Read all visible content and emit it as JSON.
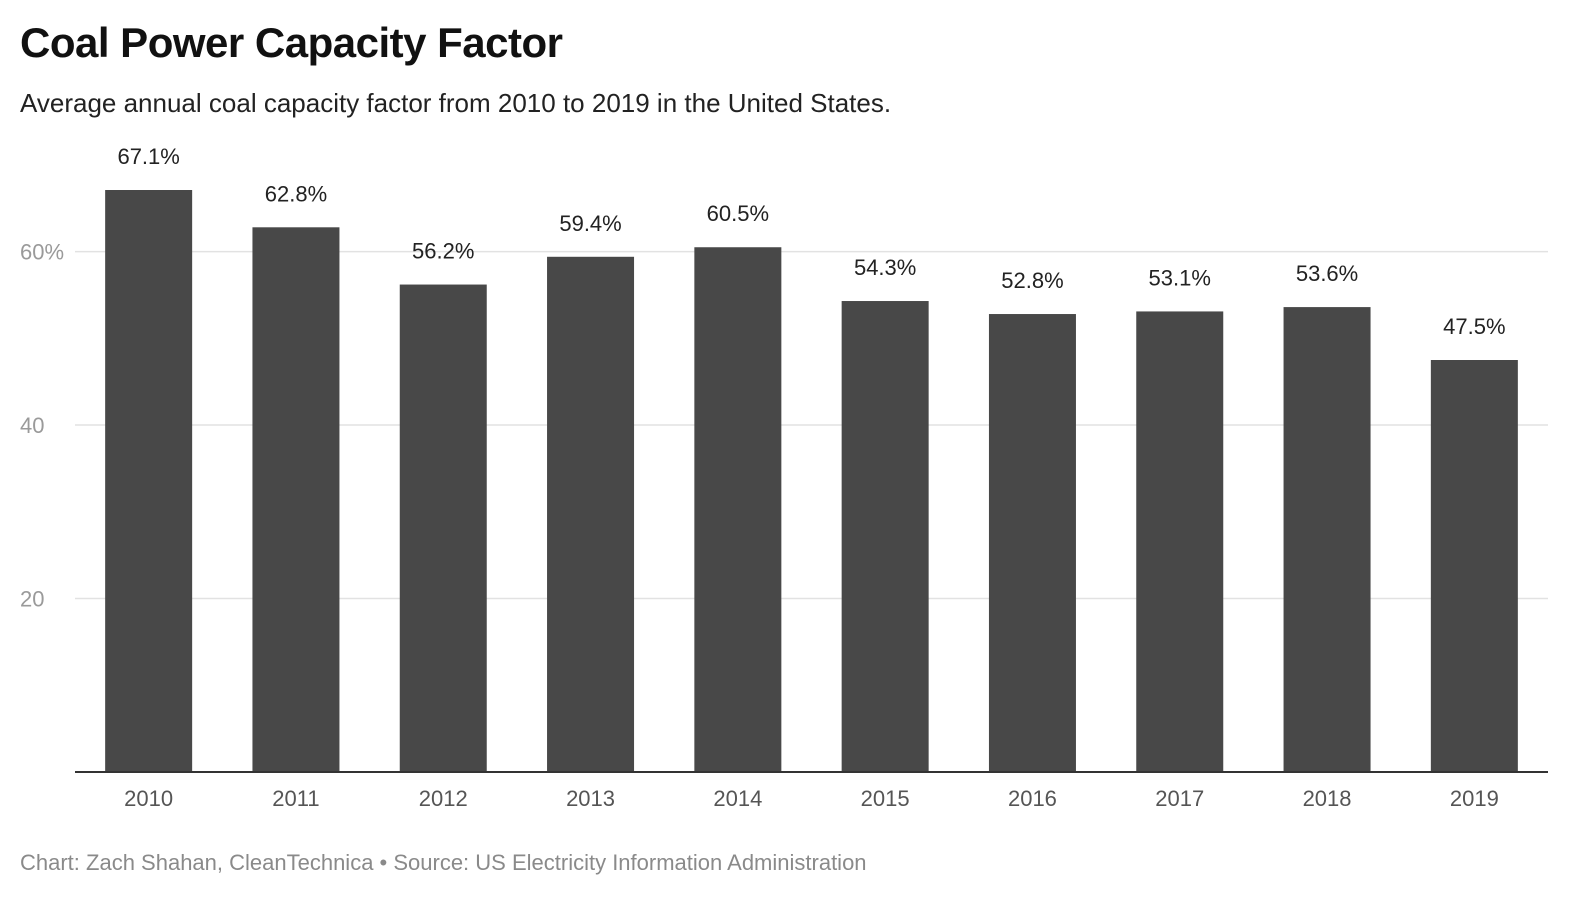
{
  "chart_data": {
    "type": "bar",
    "title": "Coal Power Capacity Factor",
    "subtitle": "Average annual coal capacity factor from 2010 to 2019 in the United States.",
    "categories": [
      "2010",
      "2011",
      "2012",
      "2013",
      "2014",
      "2015",
      "2016",
      "2017",
      "2018",
      "2019"
    ],
    "values": [
      67.1,
      62.8,
      56.2,
      59.4,
      60.5,
      54.3,
      52.8,
      53.1,
      53.6,
      47.5
    ],
    "value_labels": [
      "67.1%",
      "62.8%",
      "56.2%",
      "59.4%",
      "60.5%",
      "54.3%",
      "52.8%",
      "53.1%",
      "53.6%",
      "47.5%"
    ],
    "ylim": [
      0,
      67.1
    ],
    "yticks": [
      20,
      40,
      60
    ],
    "ytick_labels": [
      "20",
      "40",
      "60%"
    ],
    "xlabel": "",
    "ylabel": "",
    "grid": true,
    "legend": "none",
    "bar_color": "#484848",
    "gridline_color": "#e2e2e2",
    "baseline_color": "#333333"
  },
  "footer": "Chart: Zach Shahan, CleanTechnica • Source: US Electricity Information Administration"
}
